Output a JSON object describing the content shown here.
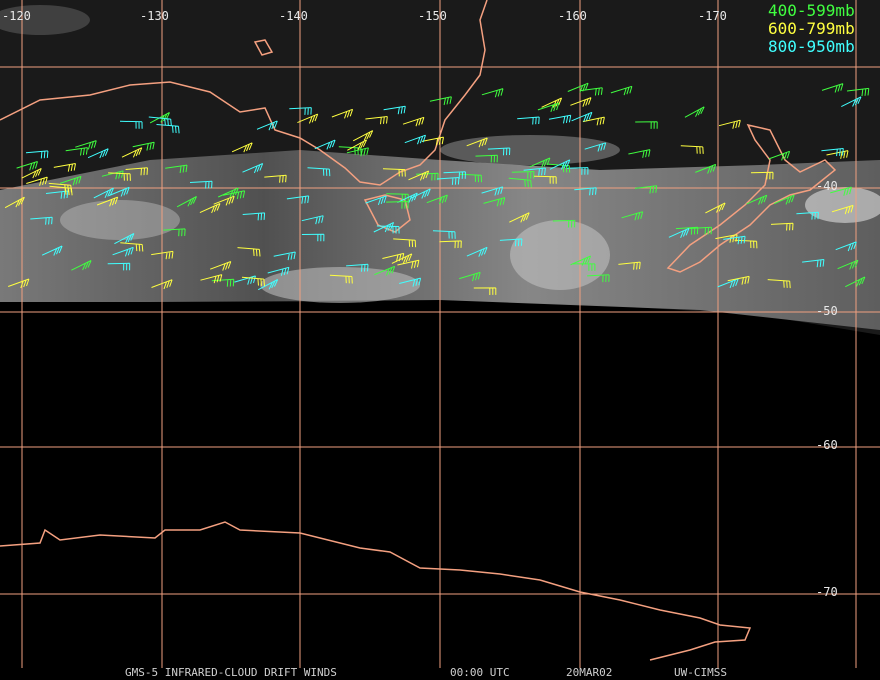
{
  "map": {
    "lon_labels": [
      "-120",
      "-130",
      "-140",
      "-150",
      "-160",
      "-170"
    ],
    "lat_labels": [
      "-40",
      "-50",
      "-60",
      "-70"
    ],
    "legend": [
      "400-599mb",
      "600-799mb",
      "800-950mb"
    ],
    "footer": [
      "GMS-5 INFRARED-CLOUD DRIFT WINDS",
      "00:00 UTC",
      "20MAR02",
      "UW-CIMSS"
    ]
  }
}
